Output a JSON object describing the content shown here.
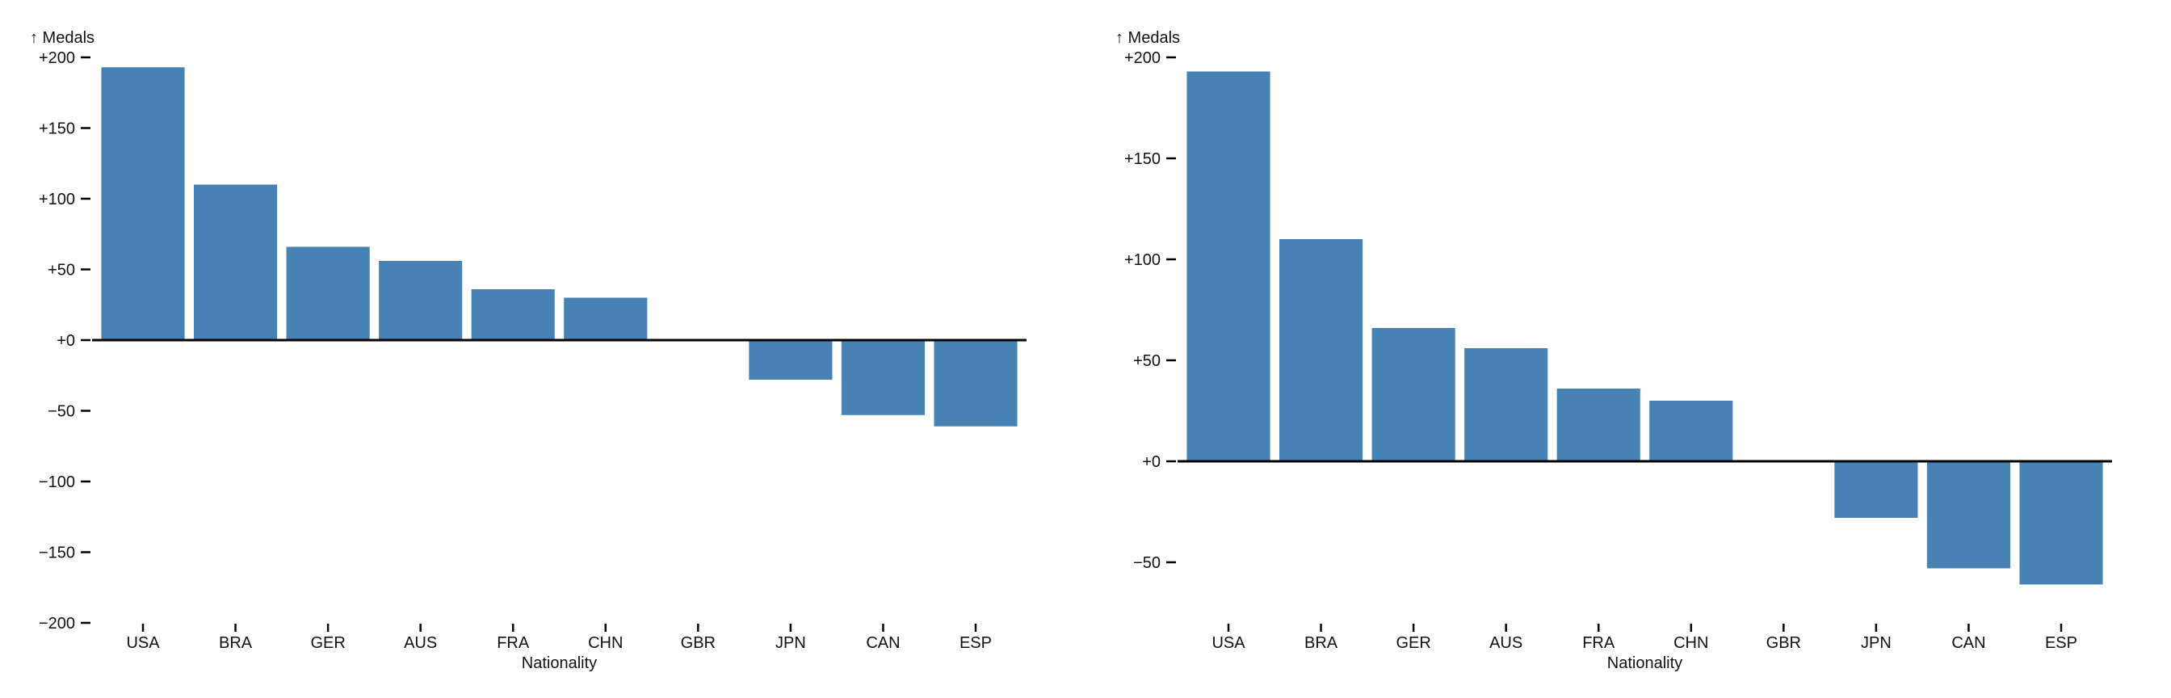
{
  "page": {
    "background": "#ffffff",
    "text_color": "#111111"
  },
  "chart_data": [
    {
      "type": "bar",
      "title": "",
      "y_axis_label": "↑ Medals",
      "ylabel": "Medals",
      "xlabel": "Nationality",
      "categories": [
        "USA",
        "BRA",
        "GER",
        "AUS",
        "FRA",
        "CHN",
        "GBR",
        "JPN",
        "CAN",
        "ESP"
      ],
      "values": [
        193,
        110,
        66,
        56,
        36,
        30,
        0,
        -28,
        -53,
        -61
      ],
      "ylim": [
        -200,
        200
      ],
      "yticks": [
        {
          "value": 200,
          "label": "+200"
        },
        {
          "value": 150,
          "label": "+150"
        },
        {
          "value": 100,
          "label": "+100"
        },
        {
          "value": 50,
          "label": "+50"
        },
        {
          "value": 0,
          "label": "+0"
        },
        {
          "value": -50,
          "label": "−50"
        },
        {
          "value": -100,
          "label": "−100"
        },
        {
          "value": -150,
          "label": "−150"
        },
        {
          "value": -200,
          "label": "−200"
        }
      ],
      "bar_color": "#4682b4",
      "axis_color": "#000000",
      "grid": false,
      "legend": null,
      "zero_line": true
    },
    {
      "type": "bar",
      "title": "",
      "y_axis_label": "↑ Medals",
      "ylabel": "Medals",
      "xlabel": "Nationality",
      "categories": [
        "USA",
        "BRA",
        "GER",
        "AUS",
        "FRA",
        "CHN",
        "GBR",
        "JPN",
        "CAN",
        "ESP"
      ],
      "values": [
        193,
        110,
        66,
        56,
        36,
        30,
        0,
        -28,
        -53,
        -61
      ],
      "ylim": [
        -80,
        200
      ],
      "yticks": [
        {
          "value": 200,
          "label": "+200"
        },
        {
          "value": 150,
          "label": "+150"
        },
        {
          "value": 100,
          "label": "+100"
        },
        {
          "value": 50,
          "label": "+50"
        },
        {
          "value": 0,
          "label": "+0"
        },
        {
          "value": -50,
          "label": "−50"
        }
      ],
      "bar_color": "#4682b4",
      "axis_color": "#000000",
      "grid": false,
      "legend": null,
      "zero_line": true
    }
  ]
}
